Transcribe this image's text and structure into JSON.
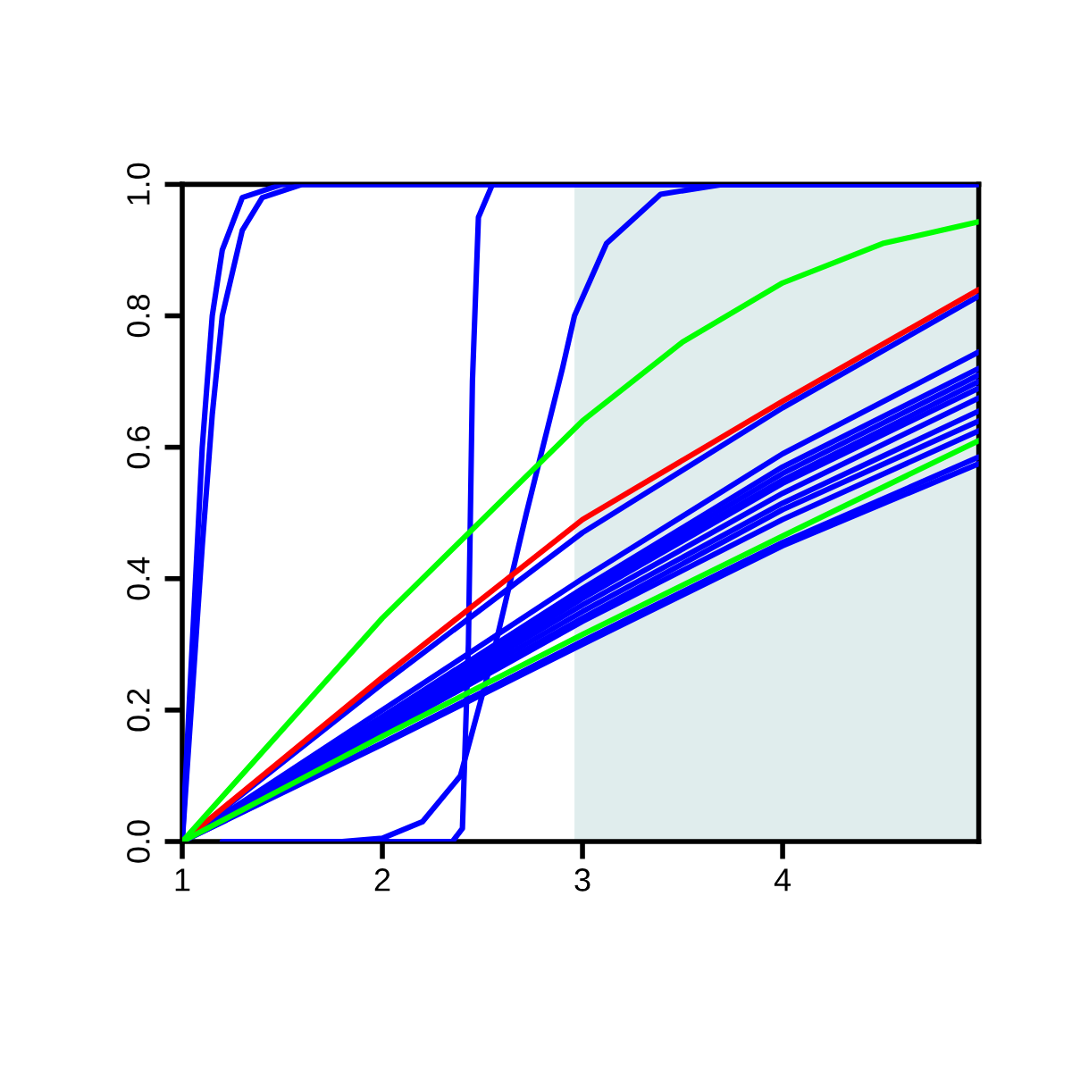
{
  "chart_data": {
    "type": "line",
    "xlim": [
      1,
      4.98
    ],
    "ylim": [
      0,
      1
    ],
    "xticks": [
      1,
      2,
      3,
      4
    ],
    "yticks": [
      {
        "value": 0,
        "label": "0.0"
      },
      {
        "value": 0.2,
        "label": "0.2"
      },
      {
        "value": 0.4,
        "label": "0.4"
      },
      {
        "value": 0.6,
        "label": "0.6"
      },
      {
        "value": 0.8,
        "label": "0.8"
      },
      {
        "value": 1,
        "label": "1.0"
      }
    ],
    "grid": false,
    "legend": false,
    "bands": [
      {
        "axis": "x",
        "from": 2.96,
        "to": 4.98,
        "color": "#e0eded"
      }
    ],
    "series": [
      {
        "color": "#0000ff",
        "x": [
          1,
          1.05,
          1.1,
          1.15,
          1.2,
          1.3,
          1.5,
          4.98
        ],
        "values": [
          0,
          0.3,
          0.6,
          0.8,
          0.9,
          0.98,
          1,
          1
        ]
      },
      {
        "color": "#0000ff",
        "x": [
          1,
          1.1,
          1.15,
          1.2,
          1.3,
          1.4,
          1.6,
          4.95
        ],
        "values": [
          0,
          0.45,
          0.65,
          0.8,
          0.93,
          0.98,
          1,
          1
        ]
      },
      {
        "color": "#0000ff",
        "x": [
          1.6,
          2.35,
          2.4,
          2.43,
          2.45,
          2.48,
          2.55,
          4.9
        ],
        "values": [
          0,
          0,
          0.02,
          0.3,
          0.7,
          0.95,
          1,
          1
        ]
      },
      {
        "color": "#0000ff",
        "x": [
          1.2,
          1.8,
          2.0,
          2.2,
          2.39,
          2.55,
          2.72,
          2.9,
          2.96,
          3.12,
          3.39,
          3.7,
          4.98
        ],
        "values": [
          0,
          0,
          0.005,
          0.03,
          0.1,
          0.28,
          0.5,
          0.72,
          0.8,
          0.91,
          0.985,
          1,
          1
        ]
      },
      {
        "color": "#0000ff",
        "x": [
          1,
          2,
          3,
          4,
          4.98
        ],
        "values": [
          0,
          0.24,
          0.47,
          0.66,
          0.83
        ]
      },
      {
        "color": "#0000ff",
        "x": [
          1,
          2,
          3,
          4,
          4.98
        ],
        "values": [
          0,
          0.2,
          0.4,
          0.59,
          0.745
        ]
      },
      {
        "color": "#0000ff",
        "x": [
          1,
          2,
          3,
          4,
          4.98
        ],
        "values": [
          0,
          0.19,
          0.385,
          0.57,
          0.72
        ]
      },
      {
        "color": "#0000ff",
        "x": [
          1,
          2,
          3,
          4,
          4.98
        ],
        "values": [
          0,
          0.19,
          0.38,
          0.56,
          0.71
        ]
      },
      {
        "color": "#0000ff",
        "x": [
          1,
          2,
          3,
          4,
          4.98
        ],
        "values": [
          0,
          0.185,
          0.375,
          0.55,
          0.7
        ]
      },
      {
        "color": "#0000ff",
        "x": [
          1,
          2,
          3,
          4,
          4.98
        ],
        "values": [
          0,
          0.18,
          0.37,
          0.545,
          0.69
        ]
      },
      {
        "color": "#0000ff",
        "x": [
          1,
          2,
          3,
          4,
          4.98
        ],
        "values": [
          0,
          0.18,
          0.36,
          0.53,
          0.675
        ]
      },
      {
        "color": "#0000ff",
        "x": [
          1,
          2,
          3,
          4,
          4.98
        ],
        "values": [
          0,
          0.175,
          0.35,
          0.515,
          0.655
        ]
      },
      {
        "color": "#0000ff",
        "x": [
          1,
          2,
          3,
          4,
          4.98
        ],
        "values": [
          0,
          0.17,
          0.34,
          0.505,
          0.64
        ]
      },
      {
        "color": "#0000ff",
        "x": [
          1,
          2,
          3,
          4,
          4.98
        ],
        "values": [
          0,
          0.165,
          0.335,
          0.49,
          0.625
        ]
      },
      {
        "color": "#0000ff",
        "x": [
          1,
          2,
          3,
          4,
          4.98
        ],
        "values": [
          0,
          0.15,
          0.305,
          0.455,
          0.585
        ]
      },
      {
        "color": "#0000ff",
        "x": [
          1,
          2,
          3,
          4,
          4.98
        ],
        "values": [
          0,
          0.148,
          0.3,
          0.45,
          0.575
        ]
      },
      {
        "color": "#ff0000",
        "x": [
          1,
          2,
          3,
          4,
          4.98
        ],
        "values": [
          0,
          0.25,
          0.49,
          0.67,
          0.84
        ]
      },
      {
        "color": "#00ff00",
        "x": [
          1,
          2,
          3,
          3.5,
          4,
          4.5,
          4.98
        ],
        "values": [
          0,
          0.34,
          0.64,
          0.76,
          0.85,
          0.91,
          0.943
        ]
      },
      {
        "color": "#00ff00",
        "x": [
          1,
          2,
          3,
          4,
          4.98
        ],
        "values": [
          0,
          0.16,
          0.315,
          0.465,
          0.61
        ]
      }
    ]
  }
}
